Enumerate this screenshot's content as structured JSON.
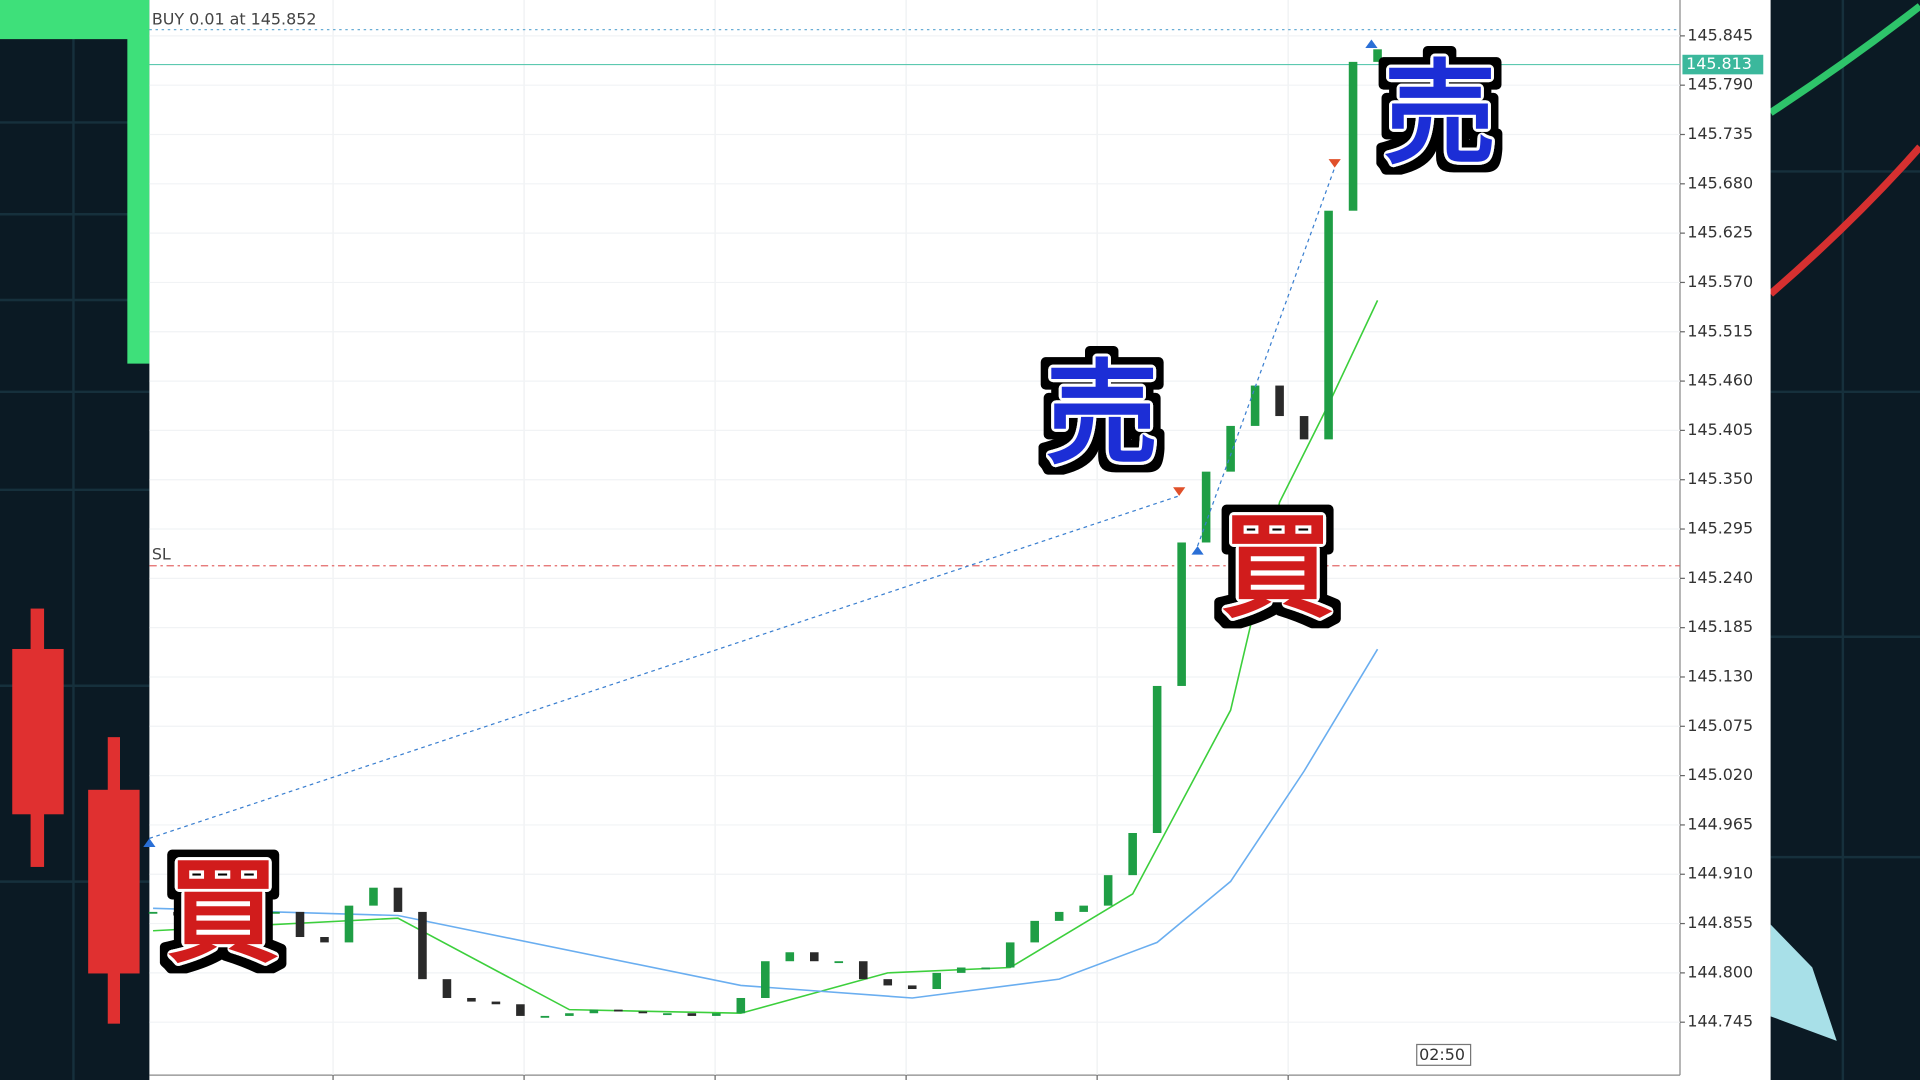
{
  "chart_data": {
    "type": "candlestick",
    "order_label": "BUY 0.01 at 145.852",
    "order_price": 145.852,
    "sl_label": "SL",
    "sl_price": 145.254,
    "current_price": 145.813,
    "current_price_label": "145.813",
    "time_label": "02:50",
    "ylim": [
      144.686,
      145.885
    ],
    "yticks": [
      144.745,
      {
        "value": 144.8,
        "label": "144.800"
      },
      144.855,
      {
        "value": 144.91,
        "label": "144.910"
      },
      144.965,
      {
        "value": 145.02,
        "label": "145.020"
      },
      145.075,
      {
        "value": 145.13,
        "label": "145.130"
      },
      145.185,
      {
        "value": 145.24,
        "label": "145.240"
      },
      145.295,
      {
        "value": 145.35,
        "label": "145.350"
      },
      145.405,
      {
        "value": 145.46,
        "label": "145.460"
      },
      145.515,
      {
        "value": 145.57,
        "label": "145.570"
      },
      145.625,
      {
        "value": 145.68,
        "label": "145.680"
      },
      145.735,
      {
        "value": 145.79,
        "label": "145.790"
      },
      145.845
    ],
    "xlim": [
      -0.15,
      62.35
    ],
    "xticks": [
      7.35,
      15.15,
      22.95,
      30.75,
      38.55,
      46.35
    ],
    "grid": true,
    "up_color": "#1f9e45",
    "down_color": "#2a2a2a",
    "open": [
      144.868,
      144.868,
      144.864,
      144.858,
      144.861,
      144.868,
      144.868,
      144.84,
      144.834,
      144.875,
      144.895,
      144.868,
      144.793,
      144.772,
      144.768,
      144.765,
      144.752,
      144.752,
      144.755,
      144.759,
      144.757,
      144.755,
      144.755,
      144.752,
      144.755,
      144.772,
      144.813,
      144.823,
      144.813,
      144.813,
      144.793,
      144.786,
      144.782,
      144.8,
      144.806,
      144.806,
      144.834,
      144.858,
      144.868,
      144.875,
      144.909,
      144.956,
      145.12,
      145.28,
      145.359,
      145.41,
      145.455,
      145.421,
      145.395,
      145.65,
      145.816
    ],
    "close": [
      144.868,
      144.864,
      144.858,
      144.861,
      144.868,
      144.868,
      144.84,
      144.834,
      144.875,
      144.895,
      144.868,
      144.793,
      144.772,
      144.768,
      144.765,
      144.752,
      144.752,
      144.755,
      144.759,
      144.757,
      144.755,
      144.755,
      144.752,
      144.755,
      144.772,
      144.813,
      144.823,
      144.813,
      144.813,
      144.793,
      144.786,
      144.782,
      144.8,
      144.806,
      144.806,
      144.834,
      144.858,
      144.868,
      144.875,
      144.909,
      144.956,
      145.12,
      145.28,
      145.359,
      145.41,
      145.455,
      145.421,
      145.395,
      145.65,
      145.816,
      145.83
    ],
    "series": [
      {
        "color": "#3ccf3c",
        "x": [
          0,
          10,
          17,
          24,
          30,
          35,
          40,
          44,
          46,
          48,
          50
        ],
        "values": [
          144.847,
          144.861,
          144.759,
          144.755,
          144.8,
          144.806,
          144.888,
          145.093,
          145.325,
          145.434,
          145.55
        ]
      },
      {
        "color": "#6aaef0",
        "x": [
          0,
          10,
          24,
          31,
          37,
          41,
          44,
          47,
          50
        ],
        "values": [
          144.872,
          144.864,
          144.786,
          144.772,
          144.793,
          144.834,
          144.902,
          145.025,
          145.161
        ]
      }
    ],
    "trades": [
      {
        "open_x": -0.15,
        "open_price": 144.95,
        "close_x": 41.9,
        "close_price": 145.332
      },
      {
        "open_x": 42.65,
        "open_price": 145.276,
        "close_x": 48.25,
        "close_price": 145.698
      }
    ],
    "entry_marker": {
      "x": 49.75,
      "price": 145.841
    },
    "annotations": [
      {
        "text": "売",
        "color": "#1f2fd6"
      },
      {
        "text": "売",
        "color": "#1f2fd6"
      },
      {
        "text": "買",
        "color": "#d11a1a"
      },
      {
        "text": "買",
        "color": "#d11a1a"
      }
    ]
  }
}
